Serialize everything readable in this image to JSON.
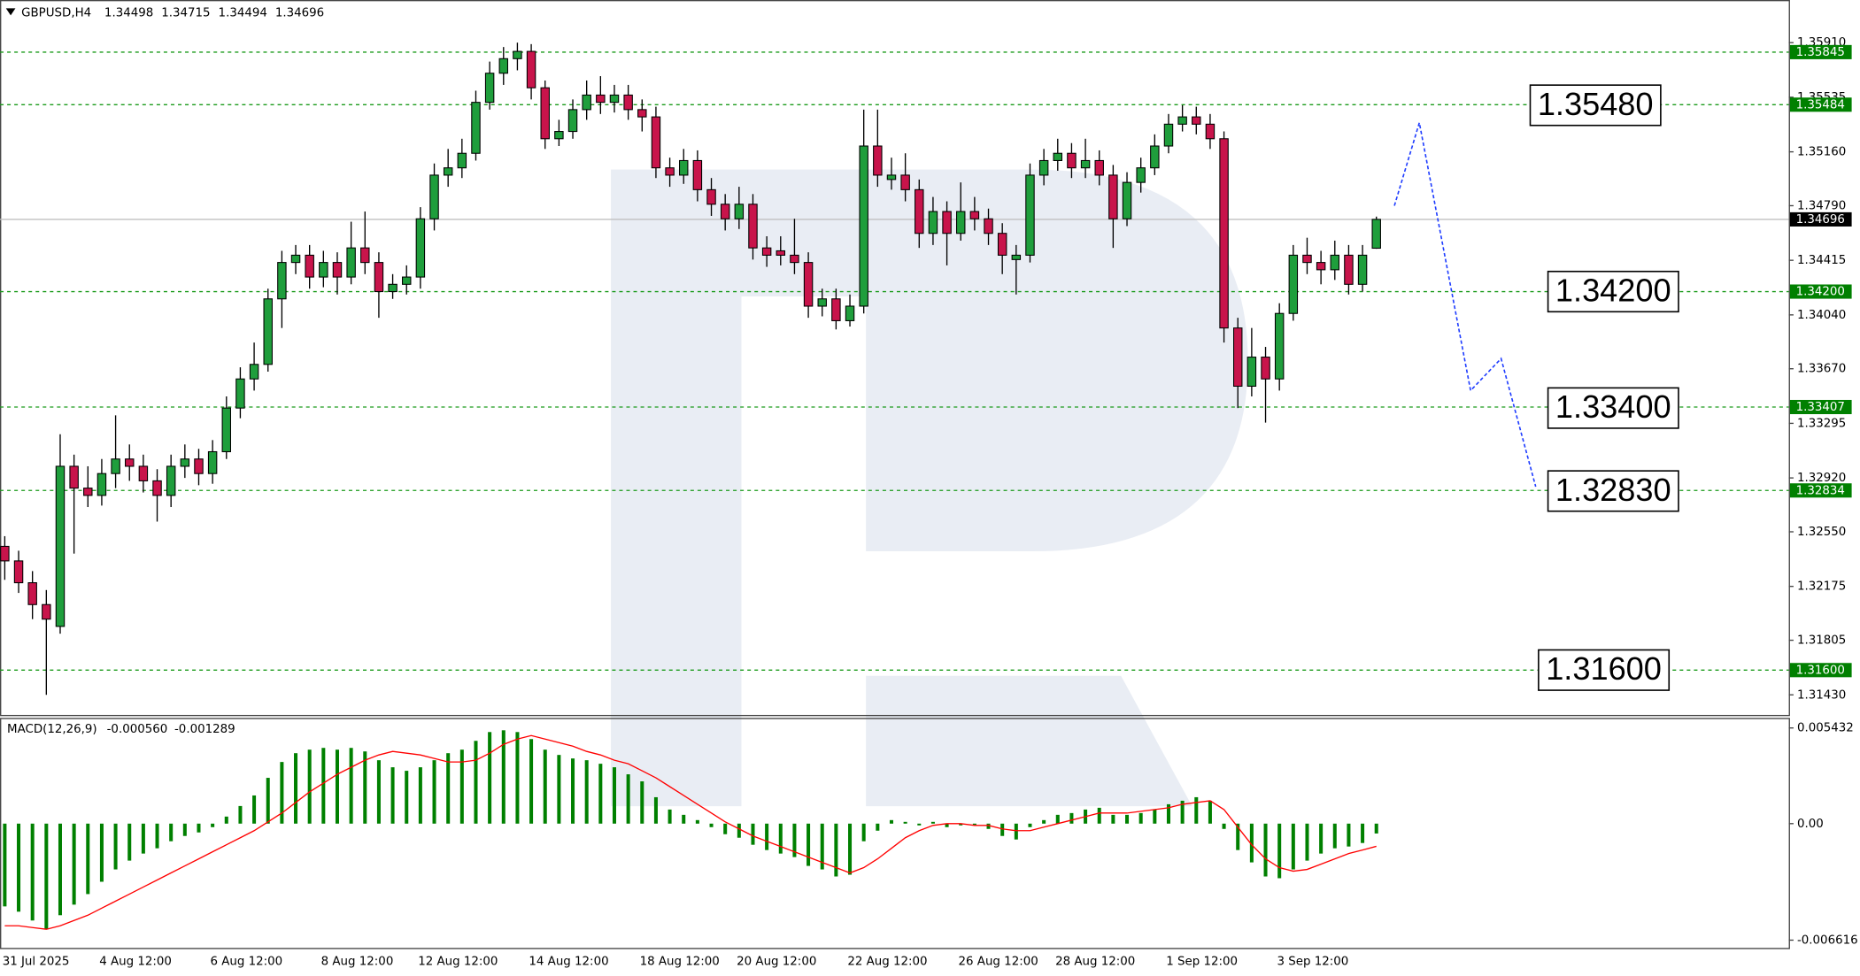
{
  "chart_data": {
    "type": "candlestick",
    "symbol": "GBPUSD,H4",
    "header_ohlc": [
      1.34498,
      1.34715,
      1.34494,
      1.34696
    ],
    "categories": [
      "31 Jul 2025",
      null,
      null,
      null,
      null,
      null,
      null,
      "4 Aug 12:00",
      null,
      null,
      null,
      null,
      null,
      null,
      null,
      "6 Aug 12:00",
      null,
      null,
      null,
      null,
      null,
      null,
      null,
      "8 Aug 12:00",
      null,
      null,
      null,
      null,
      null,
      null,
      "12 Aug 12:00",
      null,
      null,
      null,
      null,
      null,
      null,
      null,
      "14 Aug 12:00",
      null,
      null,
      null,
      null,
      null,
      null,
      null,
      "18 Aug 12:00",
      null,
      null,
      null,
      null,
      null,
      null,
      "20 Aug 12:00",
      null,
      null,
      null,
      null,
      null,
      null,
      null,
      "22 Aug 12:00",
      null,
      null,
      null,
      null,
      null,
      null,
      null,
      "26 Aug 12:00",
      null,
      null,
      null,
      null,
      null,
      null,
      "28 Aug 12:00",
      null,
      null,
      null,
      null,
      null,
      null,
      null,
      "1 Sep 12:00",
      null,
      null,
      null,
      null,
      null,
      null,
      null,
      "3 Sep 12:00",
      null,
      null,
      null,
      null,
      null,
      null,
      null
    ],
    "open": [
      1.3245,
      1.3235,
      1.322,
      1.3205,
      1.319,
      1.33,
      1.3285,
      1.328,
      1.3295,
      1.3305,
      1.33,
      1.329,
      1.328,
      1.33,
      1.3305,
      1.3295,
      1.331,
      1.334,
      1.336,
      1.337,
      1.3415,
      1.344,
      1.3445,
      1.343,
      1.344,
      1.343,
      1.345,
      1.344,
      1.342,
      1.3425,
      1.343,
      1.347,
      1.35,
      1.3505,
      1.3515,
      1.355,
      1.357,
      1.358,
      1.3585,
      1.356,
      1.3525,
      1.353,
      1.3545,
      1.3555,
      1.355,
      1.3555,
      1.3545,
      1.354,
      1.3505,
      1.35,
      1.351,
      1.349,
      1.348,
      1.347,
      1.348,
      1.345,
      1.3448,
      1.3445,
      1.344,
      1.341,
      1.3415,
      1.34,
      1.341,
      1.352,
      1.3497,
      1.35,
      1.349,
      1.346,
      1.3475,
      1.346,
      1.3475,
      1.347,
      1.346,
      1.3442,
      1.3445,
      1.35,
      1.351,
      1.3515,
      1.3505,
      1.351,
      1.35,
      1.347,
      1.3495,
      1.3505,
      1.352,
      1.3535,
      1.354,
      1.3535,
      1.3525,
      1.3395,
      1.3355,
      1.3375,
      1.336,
      1.3405,
      1.3445,
      1.344,
      1.3435,
      1.3445,
      1.3425,
      1.34498
    ],
    "high": [
      1.3252,
      1.3242,
      1.3228,
      1.3215,
      1.3322,
      1.3308,
      1.33,
      1.3305,
      1.3335,
      1.3315,
      1.3308,
      1.3298,
      1.3308,
      1.3315,
      1.3312,
      1.3318,
      1.3348,
      1.3368,
      1.3385,
      1.3422,
      1.3448,
      1.3452,
      1.3452,
      1.3448,
      1.3447,
      1.3468,
      1.3475,
      1.3447,
      1.3432,
      1.3438,
      1.3478,
      1.3508,
      1.3518,
      1.3525,
      1.3558,
      1.3578,
      1.3588,
      1.3591,
      1.359,
      1.3565,
      1.3538,
      1.3552,
      1.3565,
      1.3568,
      1.3562,
      1.3562,
      1.3552,
      1.3547,
      1.3512,
      1.3518,
      1.3517,
      1.3498,
      1.3487,
      1.3492,
      1.3487,
      1.3458,
      1.3458,
      1.347,
      1.3447,
      1.3422,
      1.3422,
      1.3418,
      1.3545,
      1.3545,
      1.3512,
      1.3515,
      1.3497,
      1.3485,
      1.3482,
      1.3495,
      1.3485,
      1.3477,
      1.3467,
      1.3452,
      1.3508,
      1.3518,
      1.3525,
      1.3522,
      1.3525,
      1.3517,
      1.3507,
      1.3502,
      1.3512,
      1.3528,
      1.3542,
      1.3548,
      1.3547,
      1.3542,
      1.353,
      1.3402,
      1.3395,
      1.3382,
      1.3412,
      1.3452,
      1.3457,
      1.3448,
      1.3455,
      1.3452,
      1.3452,
      1.34715
    ],
    "low": [
      1.3222,
      1.3213,
      1.3195,
      1.3143,
      1.3185,
      1.324,
      1.3272,
      1.3273,
      1.3285,
      1.329,
      1.3282,
      1.3262,
      1.3272,
      1.3292,
      1.3287,
      1.3288,
      1.3305,
      1.3333,
      1.3352,
      1.3365,
      1.3395,
      1.3432,
      1.3422,
      1.3423,
      1.3418,
      1.3425,
      1.3432,
      1.3402,
      1.3415,
      1.3418,
      1.3422,
      1.3462,
      1.3492,
      1.3498,
      1.351,
      1.3545,
      1.3562,
      1.3572,
      1.3552,
      1.3518,
      1.352,
      1.3525,
      1.3538,
      1.3542,
      1.3543,
      1.3538,
      1.353,
      1.3498,
      1.3492,
      1.3494,
      1.3482,
      1.3472,
      1.3462,
      1.3463,
      1.3442,
      1.3437,
      1.3438,
      1.3432,
      1.3402,
      1.3403,
      1.3394,
      1.3396,
      1.3405,
      1.3492,
      1.349,
      1.3482,
      1.345,
      1.3452,
      1.3438,
      1.3455,
      1.3462,
      1.3452,
      1.3432,
      1.3418,
      1.344,
      1.3493,
      1.3503,
      1.3498,
      1.3498,
      1.3493,
      1.345,
      1.3465,
      1.3488,
      1.35,
      1.3515,
      1.353,
      1.3528,
      1.3518,
      1.3385,
      1.334,
      1.3348,
      1.333,
      1.3352,
      1.34,
      1.3432,
      1.3425,
      1.3428,
      1.3418,
      1.342,
      1.34494
    ],
    "close": [
      1.3235,
      1.322,
      1.3205,
      1.3195,
      1.33,
      1.3285,
      1.328,
      1.3295,
      1.3305,
      1.33,
      1.329,
      1.328,
      1.33,
      1.3305,
      1.3295,
      1.331,
      1.334,
      1.336,
      1.337,
      1.3415,
      1.344,
      1.3445,
      1.343,
      1.344,
      1.343,
      1.345,
      1.344,
      1.342,
      1.3425,
      1.343,
      1.347,
      1.35,
      1.3505,
      1.3515,
      1.355,
      1.357,
      1.358,
      1.3585,
      1.356,
      1.3525,
      1.353,
      1.3545,
      1.3555,
      1.355,
      1.3555,
      1.3545,
      1.354,
      1.3505,
      1.35,
      1.351,
      1.349,
      1.348,
      1.347,
      1.348,
      1.345,
      1.3445,
      1.3445,
      1.344,
      1.341,
      1.3415,
      1.34,
      1.341,
      1.352,
      1.35,
      1.35,
      1.349,
      1.346,
      1.3475,
      1.346,
      1.3475,
      1.347,
      1.346,
      1.3445,
      1.3445,
      1.35,
      1.351,
      1.3515,
      1.3505,
      1.351,
      1.35,
      1.347,
      1.3495,
      1.3505,
      1.352,
      1.3535,
      1.354,
      1.3535,
      1.3525,
      1.3395,
      1.3355,
      1.3375,
      1.336,
      1.3405,
      1.3445,
      1.344,
      1.3435,
      1.3445,
      1.3425,
      1.3445,
      1.34696
    ],
    "up_color": "#1f9e3c",
    "down_color": "#c8144b",
    "ylim": [
      1.31292,
      1.36203
    ],
    "yticks": [
      {
        "value": 1.3591,
        "label": "1.35910"
      },
      1.35535,
      {
        "value": 1.3516,
        "label": "1.35160"
      },
      {
        "value": 1.3479,
        "label": "1.34790"
      },
      1.34415,
      {
        "value": 1.3404,
        "label": "1.34040"
      },
      {
        "value": 1.3367,
        "label": "1.33670"
      },
      1.33295,
      {
        "value": 1.3292,
        "label": "1.32920"
      },
      {
        "value": 1.3255,
        "label": "1.32550"
      },
      1.32175,
      1.31805,
      {
        "value": 1.3143,
        "label": "1.31430"
      }
    ],
    "levels": [
      1.35845,
      1.35484,
      {
        "value": 1.342,
        "label": "1.34200"
      },
      1.33407,
      1.32834,
      {
        "value": 1.316,
        "label": "1.31600"
      }
    ],
    "level_color": "#1a9a1a",
    "targets": [
      {
        "value": 1.3548,
        "label": "1.35480"
      },
      {
        "value": 1.342,
        "label": "1.34200"
      },
      {
        "value": 1.334,
        "label": "1.33400"
      },
      {
        "value": 1.3283,
        "label": "1.32830"
      },
      {
        "value": 1.316,
        "label": "1.31600"
      }
    ],
    "forecast": {
      "x": [
        100.3,
        102.1,
        105.8,
        108,
        110.5
      ],
      "y": [
        1.3479,
        1.3536,
        1.3352,
        1.3374,
        1.3286
      ],
      "color": "#1e3cff"
    },
    "macd": {
      "type": "macd",
      "name": "MACD(12,26,9)",
      "header_values": [
        {
          "value": -0.00056,
          "label": "-0.000560"
        },
        -0.001289
      ],
      "histogram": [
        -0.0047,
        -0.005,
        -0.0055,
        -0.006,
        -0.0052,
        -0.0046,
        -0.004,
        -0.0033,
        -0.0026,
        -0.0021,
        -0.0017,
        -0.0014,
        -0.001,
        -0.0007,
        -0.0005,
        -0.0002,
        0.0004,
        0.001,
        0.0016,
        0.0026,
        0.0035,
        0.004,
        0.0042,
        0.0043,
        0.0042,
        0.0043,
        0.0041,
        0.0036,
        0.0032,
        0.003,
        0.0032,
        0.0036,
        0.004,
        0.0042,
        0.0047,
        0.0052,
        0.0053,
        0.0052,
        0.0048,
        0.0042,
        0.0039,
        0.0037,
        0.0036,
        0.0034,
        0.0032,
        0.0028,
        0.0024,
        0.0015,
        0.0008,
        0.0005,
        0.0002,
        -0.0002,
        -0.0006,
        -0.0008,
        -0.0012,
        -0.0015,
        -0.0017,
        -0.0019,
        -0.0024,
        -0.0026,
        -0.003,
        -0.0029,
        -0.001,
        -0.0004,
        0.0002,
        0.0001,
        -0.0001,
        0.0001,
        -0.0002,
        -0.0001,
        -0.0001,
        -0.0003,
        -0.0007,
        -0.0009,
        -0.0002,
        0.0002,
        0.0005,
        0.0006,
        0.0008,
        0.0009,
        0.0005,
        0.0005,
        0.0006,
        0.0008,
        0.0011,
        0.0013,
        0.0015,
        0.0013,
        -0.0003,
        -0.0015,
        -0.0022,
        -0.003,
        -0.0031,
        -0.0026,
        -0.0021,
        -0.0017,
        -0.0014,
        -0.0013,
        -0.0011,
        -0.00056
      ],
      "signal": [
        -0.0058,
        -0.0058,
        -0.0059,
        -0.006,
        -0.0058,
        -0.0055,
        -0.0052,
        -0.0048,
        -0.0044,
        -0.004,
        -0.0036,
        -0.0032,
        -0.0028,
        -0.0024,
        -0.002,
        -0.0016,
        -0.0012,
        -0.0008,
        -0.0004,
        0.0001,
        0.0006,
        0.0012,
        0.0018,
        0.0023,
        0.0028,
        0.0032,
        0.0036,
        0.0039,
        0.0041,
        0.004,
        0.0039,
        0.0037,
        0.0035,
        0.0035,
        0.0036,
        0.004,
        0.0045,
        0.0048,
        0.005,
        0.0048,
        0.0046,
        0.0044,
        0.0041,
        0.0039,
        0.0036,
        0.0034,
        0.003,
        0.0026,
        0.0021,
        0.0016,
        0.0011,
        0.0006,
        0.0001,
        -0.0003,
        -0.0007,
        -0.001,
        -0.0013,
        -0.0016,
        -0.0019,
        -0.0022,
        -0.0025,
        -0.0028,
        -0.0025,
        -0.002,
        -0.0014,
        -0.0008,
        -0.0004,
        -0.0001,
        0.0,
        0.0,
        -0.0001,
        -0.0001,
        -0.0003,
        -0.0004,
        -0.0004,
        -0.0002,
        0.0,
        0.0002,
        0.0004,
        0.0006,
        0.0006,
        0.0006,
        0.0007,
        0.0008,
        0.0009,
        0.0011,
        0.0012,
        0.0013,
        0.0008,
        -0.0002,
        -0.0012,
        -0.002,
        -0.0025,
        -0.0027,
        -0.0026,
        -0.0023,
        -0.002,
        -0.0017,
        -0.0015,
        -0.001289
      ],
      "histogram_color": "#008000",
      "signal_color": "#ff0000",
      "ylim": [
        -0.00709,
        0.00597
      ],
      "yticks": [
        0.005432,
        {
          "value": 0,
          "label": "0.00"
        },
        -0.006616
      ]
    }
  }
}
